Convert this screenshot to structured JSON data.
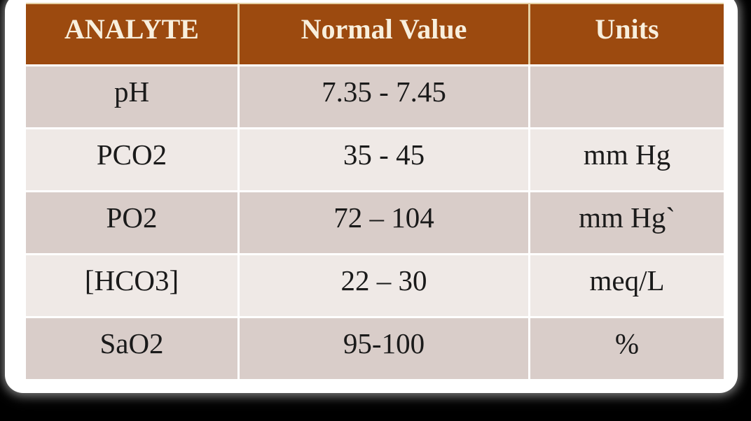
{
  "table": {
    "columns": [
      "ANALYTE",
      "Normal Value",
      "Units"
    ],
    "rows": [
      {
        "analyte": "pH",
        "value": "7.35 - 7.45",
        "units": ""
      },
      {
        "analyte": "PCO2",
        "value": "35 - 45",
        "units": "mm Hg"
      },
      {
        "analyte": "PO2",
        "value": "72 – 104",
        "units": "mm Hg`"
      },
      {
        "analyte": "[HCO3]",
        "value": "22 – 30",
        "units": "meq/L"
      },
      {
        "analyte": "SaO2",
        "value": "95-100",
        "units": "%"
      }
    ]
  },
  "colors": {
    "page_background": "#000000",
    "card_background": "#FFFFFF",
    "header_background": "#9C4A0F",
    "header_text": "#F8EFDD",
    "header_divider": "#E5CFA2",
    "row_dark": "#D9CDC9",
    "row_light": "#EFE9E6",
    "body_text": "#1A1A1A"
  }
}
